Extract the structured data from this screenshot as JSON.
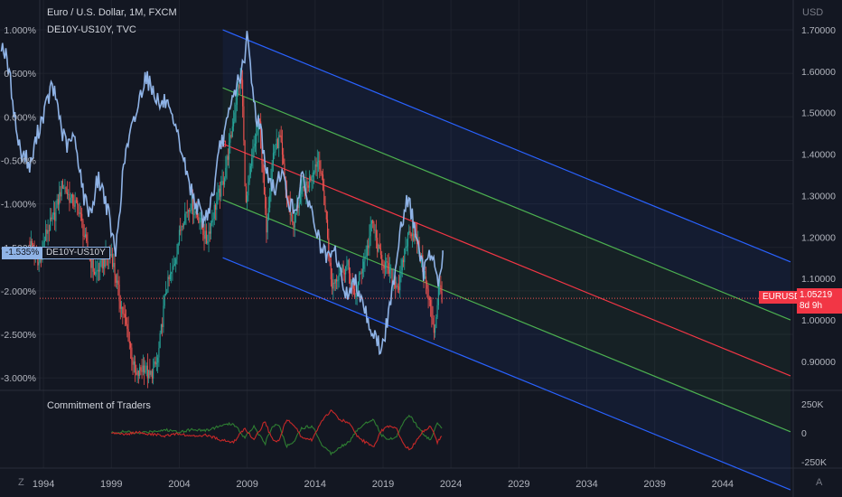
{
  "legend": {
    "line1": "Euro / U.S. Dollar, 1M, FXCM",
    "line2": "DE10Y-US10Y, TVC",
    "cot": "Commitment of Traders"
  },
  "right_axis_label": "USD",
  "corner_left": "Z",
  "corner_right": "A",
  "badges": {
    "spread_value": "-1.535%",
    "spread_name": "DE10Y-US10Y",
    "pair_name": "EURUSD",
    "price": "1.05219",
    "countdown": "8d 9h"
  },
  "colors": {
    "background": "#131722",
    "grid": "#1e222d",
    "spread_line": "#8fb3e6",
    "candle_up": "#26a69a",
    "candle_down": "#ef5350",
    "channel_outer": "#2962ff",
    "channel_inner": "#4caf50",
    "channel_mid": "#f23645",
    "cot_long": "#2e7d32",
    "cot_short": "#c62828"
  },
  "chart_data": [
    {
      "type": "line",
      "title": "Euro / U.S. Dollar, 1M, FXCM",
      "x_ticks": [
        "1994",
        "1999",
        "2004",
        "2009",
        "2014",
        "2019",
        "2024",
        "2029",
        "2034",
        "2039",
        "2044"
      ],
      "x_range": [
        1990.8,
        2049.2
      ],
      "left_axis": {
        "ticks": [
          "1.000%",
          "0.500%",
          "0.000%",
          "-0.500%",
          "-1.000%",
          "-1.500%",
          "-2.000%",
          "-2.500%",
          "-3.000%"
        ],
        "ylim": [
          -3.08,
          1.1
        ]
      },
      "right_axis": {
        "label": "USD",
        "ticks": [
          "1.70000",
          "1.60000",
          "1.50000",
          "1.40000",
          "1.30000",
          "1.20000",
          "1.10000",
          "1.00000",
          "0.90000"
        ],
        "ylim": [
          0.825,
          1.7
        ]
      },
      "series": [
        {
          "name": "DE10Y-US10Y",
          "axis": "left",
          "points": [
            [
              1990.9,
              0.85
            ],
            [
              1991.2,
              0.72
            ],
            [
              1991.6,
              0.38
            ],
            [
              1992.0,
              -0.15
            ],
            [
              1992.3,
              -0.4
            ],
            [
              1992.7,
              -0.45
            ],
            [
              1993.0,
              -0.6
            ],
            [
              1993.4,
              -0.3
            ],
            [
              1993.8,
              -0.05
            ],
            [
              1994.2,
              0.12
            ],
            [
              1994.6,
              0.35
            ],
            [
              1995.0,
              0.18
            ],
            [
              1995.4,
              -0.2
            ],
            [
              1995.8,
              -0.35
            ],
            [
              1996.2,
              -0.22
            ],
            [
              1996.6,
              -0.5
            ],
            [
              1997.0,
              -0.95
            ],
            [
              1997.5,
              -1.1
            ],
            [
              1998.0,
              -0.7
            ],
            [
              1998.5,
              -0.9
            ],
            [
              1999.0,
              -1.3
            ],
            [
              1999.3,
              -1.6
            ],
            [
              1999.6,
              -1.05
            ],
            [
              2000.0,
              -0.45
            ],
            [
              2000.5,
              -0.15
            ],
            [
              2001.0,
              0.15
            ],
            [
              2001.5,
              0.5
            ],
            [
              2001.8,
              0.38
            ],
            [
              2002.2,
              0.28
            ],
            [
              2002.6,
              0.12
            ],
            [
              2003.0,
              0.18
            ],
            [
              2003.4,
              -0.05
            ],
            [
              2003.8,
              -0.2
            ],
            [
              2004.2,
              -0.4
            ],
            [
              2004.6,
              -0.7
            ],
            [
              2005.0,
              -0.9
            ],
            [
              2005.4,
              -1.05
            ],
            [
              2005.8,
              -1.2
            ],
            [
              2006.2,
              -1.05
            ],
            [
              2006.6,
              -0.8
            ],
            [
              2007.0,
              -0.35
            ],
            [
              2007.5,
              -0.1
            ],
            [
              2008.0,
              0.25
            ],
            [
              2008.4,
              0.45
            ],
            [
              2008.8,
              0.6
            ],
            [
              2009.0,
              0.95
            ],
            [
              2009.3,
              0.5
            ],
            [
              2009.6,
              0.05
            ],
            [
              2010.0,
              -0.15
            ],
            [
              2010.5,
              -0.7
            ],
            [
              2011.0,
              -0.85
            ],
            [
              2011.5,
              -0.6
            ],
            [
              2012.0,
              -0.95
            ],
            [
              2012.5,
              -1.1
            ],
            [
              2013.0,
              -0.7
            ],
            [
              2013.5,
              -0.95
            ],
            [
              2014.0,
              -1.25
            ],
            [
              2014.5,
              -1.55
            ],
            [
              2015.0,
              -1.65
            ],
            [
              2015.5,
              -1.55
            ],
            [
              2016.0,
              -1.9
            ],
            [
              2016.3,
              -2.05
            ],
            [
              2016.7,
              -1.95
            ],
            [
              2017.0,
              -1.9
            ],
            [
              2017.5,
              -2.1
            ],
            [
              2018.0,
              -2.4
            ],
            [
              2018.5,
              -2.55
            ],
            [
              2018.9,
              -2.7
            ],
            [
              2019.2,
              -2.45
            ],
            [
              2019.6,
              -2.1
            ],
            [
              2020.0,
              -1.6
            ],
            [
              2020.3,
              -1.25
            ],
            [
              2020.8,
              -0.95
            ],
            [
              2021.2,
              -1.15
            ],
            [
              2021.6,
              -1.55
            ],
            [
              2022.0,
              -1.8
            ],
            [
              2022.4,
              -1.5
            ],
            [
              2022.8,
              -1.7
            ],
            [
              2023.1,
              -1.95
            ],
            [
              2023.4,
              -1.535
            ]
          ]
        },
        {
          "name": "EURUSD",
          "axis": "right",
          "last": 1.05219,
          "points": [
            [
              1993.0,
              1.19
            ],
            [
              1993.6,
              1.13
            ],
            [
              1994.2,
              1.21
            ],
            [
              1994.8,
              1.25
            ],
            [
              1995.4,
              1.33
            ],
            [
              1996.0,
              1.29
            ],
            [
              1996.6,
              1.27
            ],
            [
              1997.2,
              1.17
            ],
            [
              1997.8,
              1.11
            ],
            [
              1998.4,
              1.14
            ],
            [
              1999.0,
              1.16
            ],
            [
              1999.6,
              1.05
            ],
            [
              2000.2,
              0.97
            ],
            [
              2000.8,
              0.86
            ],
            [
              2001.4,
              0.89
            ],
            [
              2001.8,
              0.86
            ],
            [
              2002.4,
              0.9
            ],
            [
              2003.0,
              1.07
            ],
            [
              2003.6,
              1.13
            ],
            [
              2004.2,
              1.24
            ],
            [
              2004.8,
              1.28
            ],
            [
              2005.4,
              1.25
            ],
            [
              2006.0,
              1.19
            ],
            [
              2006.6,
              1.27
            ],
            [
              2007.2,
              1.33
            ],
            [
              2007.8,
              1.44
            ],
            [
              2008.3,
              1.56
            ],
            [
              2008.6,
              1.58
            ],
            [
              2008.9,
              1.27
            ],
            [
              2009.4,
              1.4
            ],
            [
              2009.9,
              1.48
            ],
            [
              2010.4,
              1.22
            ],
            [
              2010.9,
              1.4
            ],
            [
              2011.4,
              1.44
            ],
            [
              2011.9,
              1.3
            ],
            [
              2012.4,
              1.23
            ],
            [
              2012.9,
              1.3
            ],
            [
              2013.4,
              1.32
            ],
            [
              2013.9,
              1.37
            ],
            [
              2014.3,
              1.39
            ],
            [
              2014.8,
              1.25
            ],
            [
              2015.2,
              1.08
            ],
            [
              2015.8,
              1.12
            ],
            [
              2016.4,
              1.13
            ],
            [
              2016.9,
              1.05
            ],
            [
              2017.4,
              1.12
            ],
            [
              2017.9,
              1.18
            ],
            [
              2018.2,
              1.24
            ],
            [
              2018.7,
              1.16
            ],
            [
              2019.2,
              1.13
            ],
            [
              2019.7,
              1.1
            ],
            [
              2020.2,
              1.08
            ],
            [
              2020.6,
              1.17
            ],
            [
              2021.0,
              1.22
            ],
            [
              2021.5,
              1.19
            ],
            [
              2021.9,
              1.13
            ],
            [
              2022.3,
              1.06
            ],
            [
              2022.8,
              0.97
            ],
            [
              2023.1,
              1.08
            ],
            [
              2023.4,
              1.05219
            ]
          ]
        }
      ]
    },
    {
      "type": "line",
      "title": "Commitment of Traders",
      "x_range": [
        1990.8,
        2049.2
      ],
      "y_ticks": [
        "250K",
        "0",
        "-250K"
      ],
      "ylim": [
        -270000,
        270000
      ],
      "series": [
        {
          "name": "",
          "color": "#2e7d32",
          "points": [
            [
              1999.0,
              0
            ],
            [
              2000.0,
              10000
            ],
            [
              2001.0,
              -5000
            ],
            [
              2002.0,
              15000
            ],
            [
              2003.0,
              25000
            ],
            [
              2004.0,
              10000
            ],
            [
              2005.0,
              30000
            ],
            [
              2006.0,
              20000
            ],
            [
              2007.0,
              60000
            ],
            [
              2008.0,
              80000
            ],
            [
              2008.8,
              -40000
            ],
            [
              2009.5,
              60000
            ],
            [
              2010.3,
              -100000
            ],
            [
              2010.8,
              50000
            ],
            [
              2011.3,
              80000
            ],
            [
              2011.9,
              -120000
            ],
            [
              2012.5,
              -60000
            ],
            [
              2013.0,
              40000
            ],
            [
              2013.8,
              60000
            ],
            [
              2014.5,
              -100000
            ],
            [
              2015.2,
              -180000
            ],
            [
              2015.8,
              -120000
            ],
            [
              2016.5,
              -80000
            ],
            [
              2017.2,
              40000
            ],
            [
              2017.8,
              90000
            ],
            [
              2018.3,
              120000
            ],
            [
              2018.9,
              -20000
            ],
            [
              2019.4,
              -60000
            ],
            [
              2020.0,
              -30000
            ],
            [
              2020.5,
              100000
            ],
            [
              2021.0,
              150000
            ],
            [
              2021.5,
              60000
            ],
            [
              2022.0,
              -20000
            ],
            [
              2022.5,
              -60000
            ],
            [
              2023.0,
              80000
            ],
            [
              2023.4,
              20000
            ]
          ]
        },
        {
          "name": "",
          "color": "#c62828",
          "points": [
            [
              1999.0,
              0
            ],
            [
              2000.0,
              -10000
            ],
            [
              2001.0,
              5000
            ],
            [
              2002.0,
              -15000
            ],
            [
              2003.0,
              -25000
            ],
            [
              2004.0,
              -10000
            ],
            [
              2005.0,
              -30000
            ],
            [
              2006.0,
              -20000
            ],
            [
              2007.0,
              -60000
            ],
            [
              2008.0,
              -80000
            ],
            [
              2008.8,
              40000
            ],
            [
              2009.5,
              -60000
            ],
            [
              2010.3,
              100000
            ],
            [
              2010.8,
              -50000
            ],
            [
              2011.3,
              -80000
            ],
            [
              2011.9,
              120000
            ],
            [
              2012.5,
              60000
            ],
            [
              2013.0,
              -40000
            ],
            [
              2013.8,
              -60000
            ],
            [
              2014.5,
              100000
            ],
            [
              2015.2,
              200000
            ],
            [
              2015.8,
              120000
            ],
            [
              2016.5,
              80000
            ],
            [
              2017.2,
              -40000
            ],
            [
              2017.8,
              -90000
            ],
            [
              2018.3,
              -120000
            ],
            [
              2018.9,
              20000
            ],
            [
              2019.4,
              60000
            ],
            [
              2020.0,
              30000
            ],
            [
              2020.5,
              -100000
            ],
            [
              2021.0,
              -150000
            ],
            [
              2021.5,
              -60000
            ],
            [
              2022.0,
              20000
            ],
            [
              2022.5,
              60000
            ],
            [
              2023.0,
              -80000
            ],
            [
              2023.4,
              -20000
            ]
          ]
        }
      ]
    }
  ],
  "drawings": {
    "regression_channel": {
      "x_start": 2007.2,
      "x_end": 2049.0,
      "mid_start": 1.425,
      "mid_end": 0.865,
      "inner_offset": 0.135,
      "outer_offset": 0.275
    }
  }
}
